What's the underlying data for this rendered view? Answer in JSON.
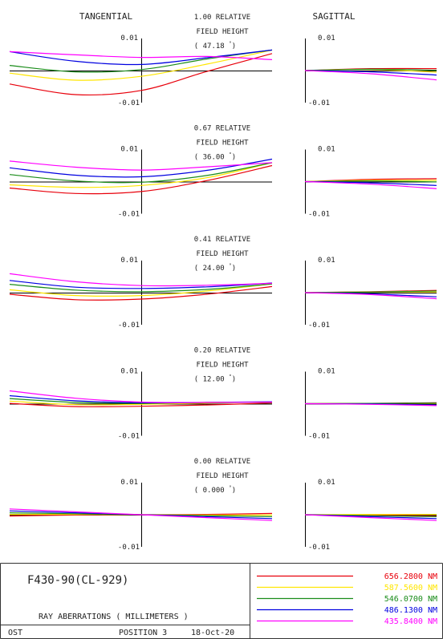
{
  "header": {
    "tangential_label": "TANGENTIAL",
    "sagittal_label": "SAGITTAL"
  },
  "field_label": {
    "line1_suffix": "RELATIVE",
    "line2": "FIELD HEIGHT"
  },
  "ticks": {
    "top": "0.01",
    "bottom": "-0.01"
  },
  "fields": [
    {
      "relative": "1.00",
      "angle": "47.18"
    },
    {
      "relative": "0.67",
      "angle": "36.00"
    },
    {
      "relative": "0.41",
      "angle": "24.00"
    },
    {
      "relative": "0.20",
      "angle": "12.00"
    },
    {
      "relative": "0.00",
      "angle": "0.000"
    }
  ],
  "footer": {
    "lens_name": "F430-90(CL-929)",
    "caption": "RAY ABERRATIONS ( MILLIMETERS )",
    "ost": "OST",
    "position": "POSITION 3",
    "date": "18-Oct-20"
  },
  "legend": [
    {
      "label": "656.2800 NM",
      "color": "#e8000b"
    },
    {
      "label": "587.5600 NM",
      "color": "#ffe600"
    },
    {
      "label": "546.0700 NM",
      "color": "#1a8c1a"
    },
    {
      "label": "486.1300 NM",
      "color": "#0000e0"
    },
    {
      "label": "435.8400 NM",
      "color": "#ff00ff"
    }
  ],
  "chart_data": {
    "type": "line",
    "units": "millimeters",
    "ylim": [
      -0.01,
      0.01
    ],
    "xlim": [
      -1,
      1
    ],
    "series_colors": [
      "#e8000b",
      "#ffe600",
      "#1a8c1a",
      "#0000e0",
      "#ff00ff"
    ],
    "panels": [
      {
        "field": "1.00",
        "tangential": [
          {
            "x": [
              -1,
              -0.5,
              0,
              0.5,
              1
            ],
            "y": [
              -0.0042,
              -0.0075,
              -0.0062,
              -0.0003,
              0.0053
            ]
          },
          {
            "x": [
              -1,
              -0.5,
              0,
              0.5,
              1
            ],
            "y": [
              -0.0008,
              -0.003,
              -0.0018,
              0.002,
              0.0064
            ]
          },
          {
            "x": [
              -1,
              -0.5,
              0,
              0.5,
              1
            ],
            "y": [
              0.0016,
              -0.0004,
              0.0003,
              0.0036,
              0.0064
            ]
          },
          {
            "x": [
              -1,
              -0.5,
              0,
              0.5,
              1
            ],
            "y": [
              0.0059,
              0.0029,
              0.0019,
              0.004,
              0.0064
            ]
          },
          {
            "x": [
              -1,
              -0.5,
              0,
              0.5,
              1
            ],
            "y": [
              0.0059,
              0.0049,
              0.0041,
              0.0044,
              0.0034
            ]
          }
        ],
        "sagittal": [
          {
            "x": [
              0,
              0.5,
              1
            ],
            "y": [
              0,
              0.0006,
              0.0006
            ]
          },
          {
            "x": [
              0,
              0.5,
              1
            ],
            "y": [
              0,
              0.0003,
              -0.0005
            ]
          },
          {
            "x": [
              0,
              0.5,
              1
            ],
            "y": [
              0,
              0.0004,
              0.0001
            ]
          },
          {
            "x": [
              0,
              0.5,
              1
            ],
            "y": [
              0,
              -0.0004,
              -0.0014
            ]
          },
          {
            "x": [
              0,
              0.5,
              1
            ],
            "y": [
              0,
              -0.001,
              -0.0029
            ]
          }
        ]
      },
      {
        "field": "0.67",
        "tangential": [
          {
            "x": [
              -1,
              -0.5,
              0,
              0.5,
              1
            ],
            "y": [
              -0.002,
              -0.0037,
              -0.0031,
              0.0003,
              0.005
            ]
          },
          {
            "x": [
              -1,
              -0.5,
              0,
              0.5,
              1
            ],
            "y": [
              -0.001,
              -0.0018,
              -0.0012,
              0.0012,
              0.0059
            ]
          },
          {
            "x": [
              -1,
              -0.5,
              0,
              0.5,
              1
            ],
            "y": [
              0.0022,
              0.0002,
              -0.0002,
              0.0019,
              0.0059
            ]
          },
          {
            "x": [
              -1,
              -0.5,
              0,
              0.5,
              1
            ],
            "y": [
              0.0043,
              0.002,
              0.0015,
              0.0035,
              0.007
            ]
          },
          {
            "x": [
              -1,
              -0.5,
              0,
              0.5,
              1
            ],
            "y": [
              0.0064,
              0.0045,
              0.0036,
              0.0046,
              0.0059
            ]
          }
        ],
        "sagittal": [
          {
            "x": [
              0,
              0.5,
              1
            ],
            "y": [
              0,
              0.0007,
              0.0009
            ]
          },
          {
            "x": [
              0,
              0.5,
              1
            ],
            "y": [
              0,
              0.0004,
              0.0004
            ]
          },
          {
            "x": [
              0,
              0.5,
              1
            ],
            "y": [
              0,
              0.0002,
              -0.0001
            ]
          },
          {
            "x": [
              0,
              0.5,
              1
            ],
            "y": [
              0,
              -0.0004,
              -0.0012
            ]
          },
          {
            "x": [
              0,
              0.5,
              1
            ],
            "y": [
              0,
              -0.0008,
              -0.0022
            ]
          }
        ]
      },
      {
        "field": "0.41",
        "tangential": [
          {
            "x": [
              -1,
              -0.5,
              0,
              0.5,
              1
            ],
            "y": [
              -0.0005,
              -0.0022,
              -0.002,
              -0.0005,
              0.0019
            ]
          },
          {
            "x": [
              -1,
              -0.5,
              0,
              0.5,
              1
            ],
            "y": [
              0.0009,
              -0.0009,
              -0.0009,
              0.0005,
              0.0027
            ]
          },
          {
            "x": [
              -1,
              -0.5,
              0,
              0.5,
              1
            ],
            "y": [
              0.0026,
              0.0008,
              0.0003,
              0.001,
              0.0027
            ]
          },
          {
            "x": [
              -1,
              -0.5,
              0,
              0.5,
              1
            ],
            "y": [
              0.0038,
              0.0017,
              0.0013,
              0.0018,
              0.003
            ]
          },
          {
            "x": [
              -1,
              -0.5,
              0,
              0.5,
              1
            ],
            "y": [
              0.0059,
              0.0034,
              0.0022,
              0.0023,
              0.0029
            ]
          }
        ],
        "sagittal": [
          {
            "x": [
              0,
              0.5,
              1
            ],
            "y": [
              0,
              0.0003,
              0.0007
            ]
          },
          {
            "x": [
              0,
              0.5,
              1
            ],
            "y": [
              0,
              0.0002,
              0.0002
            ]
          },
          {
            "x": [
              0,
              0.5,
              1
            ],
            "y": [
              0,
              0.0002,
              0.0005
            ]
          },
          {
            "x": [
              0,
              0.5,
              1
            ],
            "y": [
              0,
              -0.0004,
              -0.0013
            ]
          },
          {
            "x": [
              0,
              0.5,
              1
            ],
            "y": [
              0,
              -0.0006,
              -0.0019
            ]
          }
        ]
      },
      {
        "field": "0.20",
        "tangential": [
          {
            "x": [
              -1,
              -0.5,
              0,
              0.5,
              1
            ],
            "y": [
              0.0001,
              -0.0009,
              -0.0008,
              -0.0004,
              0.0002
            ]
          },
          {
            "x": [
              -1,
              -0.5,
              0,
              0.5,
              1
            ],
            "y": [
              0.0008,
              -0.0003,
              -0.0002,
              0.0002,
              0.0006
            ]
          },
          {
            "x": [
              -1,
              -0.5,
              0,
              0.5,
              1
            ],
            "y": [
              0.0016,
              0.0004,
              0.0001,
              0.0004,
              0.0004
            ]
          },
          {
            "x": [
              -1,
              -0.5,
              0,
              0.5,
              1
            ],
            "y": [
              0.0025,
              0.0009,
              0.0003,
              0.0004,
              0.0006
            ]
          },
          {
            "x": [
              -1,
              -0.5,
              0,
              0.5,
              1
            ],
            "y": [
              0.004,
              0.0017,
              0.0005,
              0.0004,
              0.0005
            ]
          }
        ],
        "sagittal": [
          {
            "x": [
              0,
              0.5,
              1
            ],
            "y": [
              0,
              0.0001,
              0.0003
            ]
          },
          {
            "x": [
              0,
              0.5,
              1
            ],
            "y": [
              0,
              0.0001,
              0.0001
            ]
          },
          {
            "x": [
              0,
              0.5,
              1
            ],
            "y": [
              0,
              0.0001,
              0.0002
            ]
          },
          {
            "x": [
              0,
              0.5,
              1
            ],
            "y": [
              0,
              -0.0001,
              -0.0004
            ]
          },
          {
            "x": [
              0,
              0.5,
              1
            ],
            "y": [
              0,
              -0.0002,
              -0.0006
            ]
          }
        ]
      },
      {
        "field": "0.00",
        "tangential": [
          {
            "x": [
              -1,
              -0.5,
              0,
              0.5,
              1
            ],
            "y": [
              -0.0004,
              -0.0001,
              0,
              0.0001,
              0.0004
            ]
          },
          {
            "x": [
              -1,
              -0.5,
              0,
              0.5,
              1
            ],
            "y": [
              0.0001,
              0.0001,
              0,
              -0.0001,
              -0.0001
            ]
          },
          {
            "x": [
              -1,
              -0.5,
              0,
              0.5,
              1
            ],
            "y": [
              0.0006,
              0.0003,
              0,
              -0.0003,
              -0.0006
            ]
          },
          {
            "x": [
              -1,
              -0.5,
              0,
              0.5,
              1
            ],
            "y": [
              0.0012,
              0.0006,
              0,
              -0.0006,
              -0.0012
            ]
          },
          {
            "x": [
              -1,
              -0.5,
              0,
              0.5,
              1
            ],
            "y": [
              0.0018,
              0.0009,
              0,
              -0.0009,
              -0.0018
            ]
          }
        ],
        "sagittal": [
          {
            "x": [
              0,
              0.5,
              1
            ],
            "y": [
              0,
              -0.0001,
              -0.0004
            ]
          },
          {
            "x": [
              0,
              0.5,
              1
            ],
            "y": [
              0,
              0.0001,
              0.0001
            ]
          },
          {
            "x": [
              0,
              0.5,
              1
            ],
            "y": [
              0,
              -0.0003,
              -0.0006
            ]
          },
          {
            "x": [
              0,
              0.5,
              1
            ],
            "y": [
              0,
              -0.0006,
              -0.0012
            ]
          },
          {
            "x": [
              0,
              0.5,
              1
            ],
            "y": [
              0,
              -0.0009,
              -0.0018
            ]
          }
        ]
      }
    ]
  }
}
